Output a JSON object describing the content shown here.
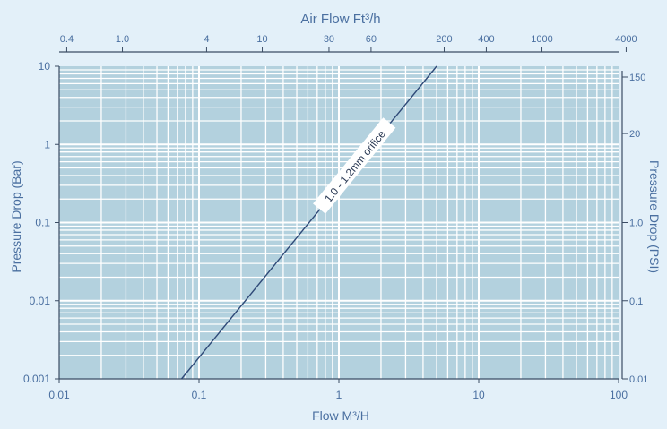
{
  "chart_data": {
    "type": "line",
    "scale": "log-log",
    "grid": true,
    "x_bottom": {
      "label": "Flow M³/H",
      "range": [
        0.01,
        100
      ],
      "ticks": [
        "0.01",
        "0.1",
        "1",
        "10",
        "100"
      ]
    },
    "x_top": {
      "label": "Air Flow Ft³/h",
      "tick_labels": [
        "0.4",
        "1.0",
        "4",
        "10",
        "30",
        "60",
        "200",
        "400",
        "1000",
        "4000"
      ],
      "tick_values": [
        0.4,
        1.0,
        4,
        10,
        30,
        60,
        200,
        400,
        1000,
        4000
      ]
    },
    "y_left": {
      "label": "Pressure Drop (Bar)",
      "range": [
        0.001,
        10
      ],
      "ticks": [
        "0.001",
        "0.01",
        "0.1",
        "1",
        "10"
      ]
    },
    "y_right": {
      "label": "Pressure Drop (PSI)",
      "tick_labels": [
        "0.01",
        "0.1",
        "1.0",
        "20",
        "150"
      ],
      "tick_values": [
        0.0145,
        0.145,
        1.45,
        20,
        150
      ]
    },
    "series": [
      {
        "name": "1.0 - 1.2mm orifice",
        "x": [
          0.075,
          5.0
        ],
        "y": [
          0.001,
          10
        ],
        "color": "#2f4a78"
      }
    ],
    "colors": {
      "background": "#e3f0f9",
      "plot_fill": "#b3d1de",
      "grid": "#ffffff",
      "axis_text": "#4a6fa0",
      "series_line": "#2f4a78"
    }
  }
}
